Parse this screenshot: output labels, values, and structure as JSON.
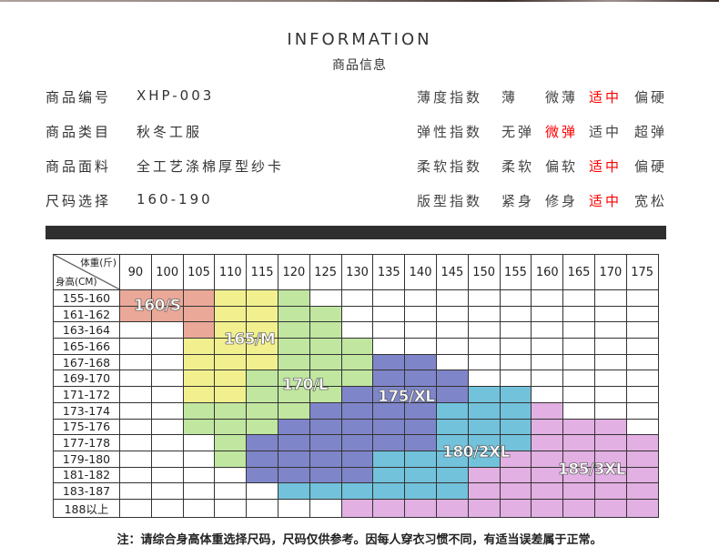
{
  "header": {
    "title": "INFORMATION",
    "subtitle": "商品信息"
  },
  "details": [
    {
      "label": "商品编号",
      "value": "XHP-003"
    },
    {
      "label": "商品类目",
      "value": "秋冬工服"
    },
    {
      "label": "商品面料",
      "value": "全工艺涤棉厚型纱卡"
    },
    {
      "label": "尺码选择",
      "value": "160-190"
    }
  ],
  "indices": [
    {
      "label": "薄度指数",
      "options": [
        "薄",
        "微薄",
        "适中",
        "偏硬"
      ],
      "selected": 2
    },
    {
      "label": "弹性指数",
      "options": [
        "无弹",
        "微弹",
        "适中",
        "超弹"
      ],
      "selected": 1
    },
    {
      "label": "柔软指数",
      "options": [
        "柔软",
        "偏软",
        "适中",
        "偏硬"
      ],
      "selected": 2
    },
    {
      "label": "版型指数",
      "options": [
        "紧身",
        "修身",
        "适中",
        "宽松"
      ],
      "selected": 2
    }
  ],
  "accent_color": "#ff0000",
  "size_chart": {
    "weight_header": "体重(斤)",
    "height_header": "身高(CM)",
    "weights": [
      "90",
      "100",
      "105",
      "110",
      "115",
      "120",
      "125",
      "130",
      "135",
      "140",
      "145",
      "150",
      "155",
      "160",
      "165",
      "170",
      "175"
    ],
    "heights": [
      "155-160",
      "161-162",
      "163-164",
      "165-166",
      "167-168",
      "169-170",
      "171-172",
      "173-174",
      "175-176",
      "177-178",
      "179-180",
      "181-182",
      "183-187",
      "188以上"
    ],
    "sizes": {
      "S": "160/S",
      "M": "165/M",
      "L": "170/L",
      "X": "175/XL",
      "2": "180/2XL",
      "3": "185/3XL"
    },
    "size_colors": {
      "S": "#eaa898",
      "M": "#f2f08e",
      "L": "#c0e6a0",
      "X": "#7f85c9",
      "2": "#72c2dc",
      "3": "#e2b0e2"
    },
    "grid": [
      "SSSMML...........",
      "SSSMMLL..........",
      "..SMMLL..........",
      "..MMMLLL.........",
      "..MMMLLLXX.......",
      "..MMLLLLXXX......",
      "..MMLLLXXXX22....",
      "..LLLLXXXX2223...",
      "..LLLXXXXX222333.",
      "...LXXXXXX2223333",
      "...LXXXX222233333",
      "....XXXX222333333",
      ".....222222333333",
      ".......3333333333"
    ]
  },
  "note": "注：请综合身高体重选择尺码，尺码仅供参考。因每人穿衣习惯不同，有适当误差属于正常。"
}
